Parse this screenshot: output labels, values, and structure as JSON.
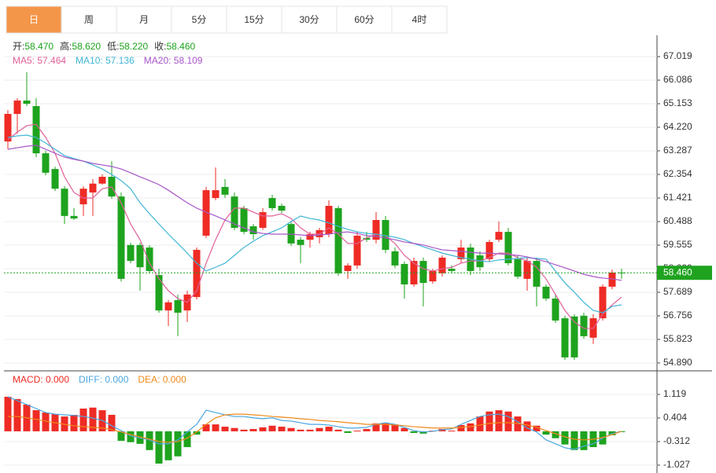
{
  "tabs": [
    "日",
    "周",
    "月",
    "5分",
    "15分",
    "30分",
    "60分",
    "4时"
  ],
  "active_tab": 0,
  "chart_data": [
    {
      "type": "candlestick",
      "info": [
        {
          "label": "开:",
          "value": "58.470"
        },
        {
          "label": "高:",
          "value": "58.620"
        },
        {
          "label": "低:",
          "value": "58.220"
        },
        {
          "label": "收:",
          "value": "58.460"
        }
      ],
      "up_color": "#ee2b24",
      "down_color": "#1ea31e",
      "open": [
        63.66,
        64.75,
        65.28,
        65.06,
        63.19,
        62.57,
        61.79,
        60.71,
        61.17,
        61.64,
        61.99,
        62.26,
        61.48,
        59.56,
        59.56,
        59.46,
        58.37,
        56.97,
        57.38,
        56.97,
        57.5,
        59.93,
        61.42,
        61.86,
        61.48,
        61.02,
        60.3,
        60.24,
        61.42,
        61.11,
        60.39,
        59.77,
        59.77,
        59.87,
        59.99,
        61.02,
        58.53,
        58.75,
        59.84,
        59.77,
        60.55,
        59.31,
        58.81,
        58.0,
        58.93,
        58.12,
        58.44,
        58.62,
        59.0,
        59.46,
        59.15,
        59.0,
        59.77,
        60.08,
        59.0,
        58.22,
        58.93,
        57.91,
        57.44,
        56.66,
        56.73,
        56.76,
        55.89,
        56.66,
        57.91,
        58.47
      ],
      "high": [
        64.9,
        65.37,
        66.4,
        65.37,
        63.29,
        62.66,
        61.89,
        61.02,
        61.89,
        62.17,
        62.35,
        62.88,
        61.64,
        59.65,
        59.65,
        59.56,
        58.62,
        57.38,
        57.6,
        57.75,
        59.46,
        61.86,
        62.63,
        62.17,
        61.64,
        61.11,
        60.39,
        61.02,
        61.55,
        61.2,
        60.49,
        59.87,
        60.08,
        60.24,
        61.33,
        61.11,
        58.84,
        60.08,
        60.08,
        60.86,
        60.71,
        59.46,
        58.9,
        59.06,
        59.06,
        58.62,
        59.15,
        58.75,
        59.77,
        59.62,
        59.31,
        59.77,
        60.49,
        60.24,
        59.15,
        59.06,
        59.06,
        58.0,
        57.6,
        56.76,
        56.82,
        56.88,
        56.82,
        58.0,
        58.59,
        58.62
      ],
      "low": [
        63.35,
        63.97,
        65.06,
        63.04,
        62.32,
        61.7,
        60.39,
        60.55,
        60.71,
        60.71,
        61.95,
        61.39,
        58.12,
        58.84,
        57.75,
        58.44,
        56.88,
        56.35,
        55.95,
        56.51,
        57.41,
        59.84,
        61.33,
        61.42,
        60.15,
        59.99,
        59.77,
        60.15,
        60.92,
        60.83,
        59.52,
        58.84,
        59.46,
        59.62,
        59.87,
        58.34,
        58.22,
        58.62,
        59.68,
        59.62,
        59.24,
        58.65,
        57.44,
        57.91,
        57.13,
        58.03,
        58.31,
        58.44,
        58.84,
        58.37,
        58.53,
        58.9,
        59.68,
        58.75,
        58.22,
        57.75,
        57.13,
        57.35,
        56.48,
        55.01,
        55.01,
        55.85,
        55.64,
        56.57,
        57.81,
        58.22
      ],
      "close": [
        64.75,
        65.28,
        65.15,
        63.19,
        62.42,
        61.79,
        60.71,
        60.61,
        61.79,
        61.99,
        62.26,
        61.48,
        58.22,
        58.93,
        58.68,
        58.53,
        56.97,
        57.29,
        56.88,
        57.6,
        59.37,
        61.73,
        61.73,
        61.55,
        60.24,
        60.08,
        59.99,
        60.86,
        61.02,
        60.92,
        59.62,
        59.56,
        59.99,
        60.15,
        61.11,
        58.44,
        58.75,
        59.93,
        59.77,
        60.55,
        59.37,
        58.75,
        58.0,
        58.93,
        58.06,
        58.53,
        59.06,
        58.53,
        59.46,
        58.53,
        58.68,
        59.68,
        60.08,
        58.84,
        58.31,
        58.93,
        57.91,
        57.44,
        56.57,
        55.11,
        55.11,
        55.95,
        56.66,
        57.91,
        58.47,
        58.46
      ],
      "series": [
        {
          "label": "MA5: 57.464",
          "color": "#e0609a",
          "values": [
            63.72,
            64.03,
            64.28,
            64.34,
            63.82,
            63.19,
            62.26,
            61.64,
            61.42,
            61.42,
            61.79,
            61.86,
            61.23,
            60.39,
            59.77,
            58.84,
            58.22,
            57.75,
            57.44,
            57.29,
            57.75,
            58.84,
            59.77,
            60.55,
            61.02,
            61.02,
            60.86,
            60.71,
            60.71,
            60.8,
            60.61,
            60.24,
            59.99,
            59.99,
            60.24,
            59.99,
            59.62,
            59.62,
            59.84,
            59.99,
            59.93,
            59.62,
            59.15,
            58.84,
            58.62,
            58.53,
            58.62,
            58.68,
            58.84,
            58.93,
            58.93,
            59.06,
            59.24,
            59.24,
            59.06,
            58.93,
            58.68,
            58.22,
            57.6,
            56.97,
            56.51,
            56.26,
            56.26,
            56.82,
            57.19,
            57.5
          ]
        },
        {
          "label": "MA10: 57.136",
          "color": "#3fb5d6",
          "values": [
            63.82,
            63.88,
            63.91,
            63.82,
            63.6,
            63.35,
            63.1,
            62.98,
            62.88,
            62.73,
            62.57,
            62.35,
            62.11,
            61.79,
            61.23,
            60.8,
            60.39,
            59.99,
            59.62,
            59.24,
            58.84,
            58.53,
            58.68,
            58.84,
            59.15,
            59.46,
            59.71,
            59.93,
            60.08,
            60.24,
            60.49,
            60.71,
            60.61,
            60.55,
            60.43,
            60.3,
            60.18,
            60.08,
            60.02,
            59.99,
            59.93,
            59.87,
            59.77,
            59.62,
            59.49,
            59.37,
            59.24,
            59.15,
            59.06,
            59.0,
            58.93,
            58.9,
            58.97,
            59.0,
            59.03,
            59.06,
            59.03,
            59.0,
            58.53,
            58.06,
            57.69,
            57.29,
            56.97,
            56.88,
            57.13,
            57.19
          ]
        },
        {
          "label": "MA20: 58.109",
          "color": "#a855c8",
          "values": [
            63.35,
            63.41,
            63.47,
            63.51,
            63.35,
            63.19,
            63.04,
            62.95,
            62.88,
            62.79,
            62.73,
            62.67,
            62.57,
            62.42,
            62.26,
            62.11,
            61.95,
            61.73,
            61.48,
            61.23,
            61.02,
            60.86,
            60.71,
            60.55,
            60.39,
            60.24,
            60.08,
            60.02,
            59.99,
            59.99,
            59.99,
            59.96,
            59.93,
            59.96,
            59.99,
            60.05,
            60.08,
            60.02,
            59.93,
            59.9,
            59.84,
            59.77,
            59.68,
            59.62,
            59.56,
            59.46,
            59.37,
            59.34,
            59.31,
            59.27,
            59.24,
            59.24,
            59.21,
            59.18,
            59.15,
            59.09,
            59.0,
            58.9,
            58.78,
            58.66,
            58.53,
            58.4,
            58.31,
            58.25,
            58.22,
            58.16
          ]
        }
      ],
      "ylim": [
        54.64,
        67.86
      ],
      "yticks": [
        67.019,
        66.086,
        65.153,
        {
          "value": 64.22,
          "label": "64.220"
        },
        63.287,
        62.354,
        61.421,
        60.488,
        59.555,
        58.622,
        57.689,
        56.756,
        55.823,
        {
          "value": 54.89,
          "label": "54.890"
        }
      ],
      "grid": true,
      "current_price": {
        "value": 58.46,
        "label": "58.460",
        "color": "#1fa31f"
      }
    },
    {
      "type": "macd",
      "series": [
        {
          "label": "MACD: 0.000",
          "kind": "bar",
          "color": "#ee2b24",
          "negative_color": "#1ea31e",
          "values": [
            1.05,
            0.98,
            0.81,
            0.64,
            0.57,
            0.52,
            0.45,
            0.5,
            0.69,
            0.72,
            0.64,
            0.5,
            -0.29,
            -0.33,
            -0.38,
            -0.57,
            -0.98,
            -0.88,
            -0.76,
            -0.48,
            -0.1,
            0.21,
            0.21,
            0.14,
            0.1,
            0.05,
            0.07,
            0.12,
            0.17,
            0.14,
            0.1,
            0.05,
            0.05,
            0.1,
            0.14,
            0.05,
            -0.05,
            0.02,
            0.07,
            0.24,
            0.24,
            0.21,
            0.1,
            -0.05,
            -0.07,
            0.02,
            0.07,
            0.02,
            0.19,
            0.24,
            0.45,
            0.6,
            0.64,
            0.6,
            0.45,
            0.3,
            0.17,
            -0.1,
            -0.21,
            -0.4,
            -0.57,
            -0.57,
            -0.48,
            -0.4,
            -0.12,
            -0.02
          ]
        },
        {
          "label": "DIFF: 0.000",
          "kind": "line",
          "color": "#4aa6e0",
          "values": [
            1.05,
            0.93,
            0.81,
            0.69,
            0.57,
            0.52,
            0.5,
            0.48,
            0.45,
            0.4,
            0.33,
            0.17,
            0.02,
            -0.14,
            -0.2,
            -0.26,
            -0.38,
            -0.38,
            -0.26,
            -0.02,
            0.21,
            0.64,
            0.57,
            0.5,
            0.45,
            0.45,
            0.41,
            0.38,
            0.41,
            0.33,
            0.31,
            0.26,
            0.21,
            0.21,
            0.19,
            0.14,
            0.1,
            0.1,
            0.12,
            0.21,
            0.26,
            0.21,
            0.12,
            0.02,
            -0.02,
            0.0,
            0.05,
            0.07,
            0.21,
            0.33,
            0.45,
            0.5,
            0.52,
            0.45,
            0.29,
            0.1,
            -0.02,
            -0.26,
            -0.38,
            -0.5,
            -0.55,
            -0.45,
            -0.38,
            -0.21,
            -0.07,
            0.0
          ]
        },
        {
          "label": "DEA: 0.000",
          "kind": "line",
          "color": "#f08a1c",
          "values": [
            0.45,
            0.45,
            0.41,
            0.36,
            0.31,
            0.26,
            0.21,
            0.17,
            0.14,
            0.12,
            0.1,
            0.05,
            -0.02,
            -0.1,
            -0.17,
            -0.24,
            -0.31,
            -0.33,
            -0.31,
            -0.21,
            -0.02,
            0.21,
            0.41,
            0.5,
            0.52,
            0.52,
            0.5,
            0.48,
            0.45,
            0.43,
            0.41,
            0.38,
            0.36,
            0.33,
            0.31,
            0.29,
            0.26,
            0.24,
            0.21,
            0.21,
            0.21,
            0.19,
            0.17,
            0.14,
            0.12,
            0.1,
            0.1,
            0.1,
            0.12,
            0.14,
            0.19,
            0.24,
            0.26,
            0.26,
            0.24,
            0.19,
            0.12,
            0.02,
            -0.07,
            -0.17,
            -0.24,
            -0.26,
            -0.24,
            -0.19,
            -0.1,
            0.0
          ]
        }
      ],
      "ylim": [
        -1.218,
        1.811
      ],
      "yticks": [
        1.119,
        0.404,
        -0.312,
        -1.027
      ],
      "grid": true
    }
  ]
}
